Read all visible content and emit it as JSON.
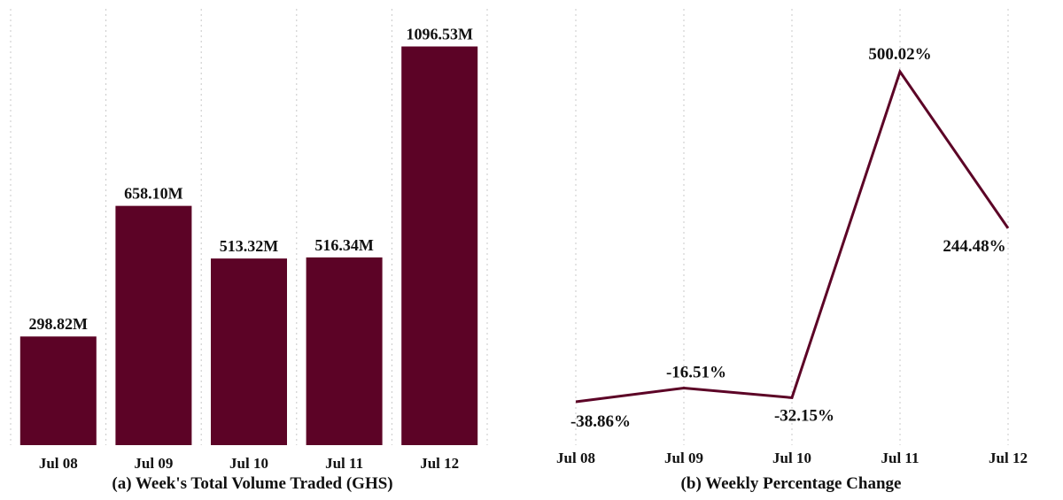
{
  "colors": {
    "bar": "#5c0326",
    "line": "#5c0326"
  },
  "chart_data": [
    {
      "type": "bar",
      "caption": "(a) Week's Total Volume Traded (GHS)",
      "categories": [
        "Jul 08",
        "Jul 09",
        "Jul 10",
        "Jul 11",
        "Jul 12"
      ],
      "values": [
        298.82,
        658.1,
        513.32,
        516.34,
        1096.53
      ],
      "data_labels": [
        "298.82M",
        "658.10M",
        "513.32M",
        "516.34M",
        "1096.53M"
      ],
      "ylim": [
        0,
        1200
      ],
      "grid": "vertical dotted"
    },
    {
      "type": "line",
      "caption": "(b) Weekly Percentage Change",
      "categories": [
        "Jul 08",
        "Jul 09",
        "Jul 10",
        "Jul 11",
        "Jul 12"
      ],
      "values": [
        -38.86,
        -16.51,
        -32.15,
        500.02,
        244.48
      ],
      "data_labels": [
        "-38.86%",
        "-16.51%",
        "-32.15%",
        "500.02%",
        "244.48%"
      ],
      "ylim": [
        -100,
        600
      ],
      "grid": "vertical dotted"
    }
  ]
}
